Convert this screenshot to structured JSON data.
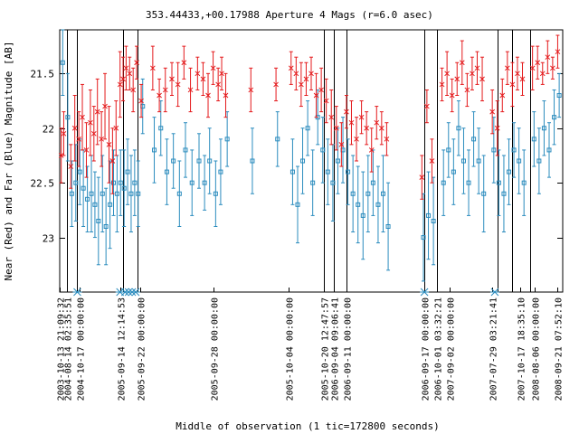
{
  "chart_data": {
    "type": "scatter",
    "title": "353.44433,+00.17988   Aperture 4 Mags (r=6.0 asec)",
    "xlabel": "Middle of observation (1 tic=172800 seconds)",
    "ylabel": "Near (Red) and Far (Blue) Magnitude [AB]",
    "y_inverted": true,
    "xlim": [
      0,
      100
    ],
    "ylim": [
      21.1,
      23.5
    ],
    "yticks": [
      21.5,
      22,
      22.5,
      23
    ],
    "ytick_labels": [
      "21.5",
      "22",
      "22.5",
      "23"
    ],
    "x_tick_labels": [
      {
        "x": 0.0,
        "label": "2003-10-13 21:09:32"
      },
      {
        "x": 1.5,
        "label": "2004-08-14 02:35:51"
      },
      {
        "x": 4.0,
        "label": "2004-10-17 00:00:00"
      },
      {
        "x": 12.0,
        "label": "2005-09-14 12:14:53"
      },
      {
        "x": 16.0,
        "label": "2005-09-22 00:00:00"
      },
      {
        "x": 30.5,
        "label": "2005-09-28 00:00:00"
      },
      {
        "x": 45.5,
        "label": "2005-10-04 00:00:00"
      },
      {
        "x": 52.5,
        "label": "2005-10-20 12:47:57"
      },
      {
        "x": 54.5,
        "label": "2006-09-04 09:06:41"
      },
      {
        "x": 57.0,
        "label": "2006-09-11 00:00:00"
      },
      {
        "x": 72.5,
        "label": "2006-09-17 00:00:00"
      },
      {
        "x": 75.0,
        "label": "2006-10-01 03:32:21"
      },
      {
        "x": 77.5,
        "label": "2007-09-02 00:00:00"
      },
      {
        "x": 86.0,
        "label": "2007-07-29 03:21:41"
      },
      {
        "x": 91.5,
        "label": "2007-10-17 18:35:10"
      },
      {
        "x": 94.5,
        "label": "2008-08-06 00:00:00"
      },
      {
        "x": 99.0,
        "label": "2008-09-21 07:52:10"
      }
    ],
    "season_dividers": [
      1.5,
      3.5,
      12.5,
      15.5,
      52.5,
      54.5,
      57.0,
      72.5,
      75.0,
      87.0,
      90.0,
      93.5
    ],
    "flagged_points_x": [
      3.5,
      12.0,
      13.0,
      13.7,
      14.4,
      15.1,
      72.5,
      86.5
    ],
    "series": [
      {
        "name": "Near (Red)",
        "color": "#e41a1c",
        "marker": "x",
        "x": [
          0.3,
          0.8,
          2.2,
          3.0,
          3.8,
          4.5,
          5.3,
          6.1,
          6.8,
          7.5,
          8.3,
          9.0,
          9.8,
          10.5,
          11.2,
          12.0,
          12.6,
          13.2,
          13.9,
          14.6,
          15.3,
          16.2,
          18.5,
          19.8,
          21.0,
          22.3,
          23.5,
          24.7,
          26.0,
          27.4,
          28.5,
          29.5,
          30.5,
          31.5,
          32.2,
          33.0,
          38.0,
          43.0,
          46.0,
          47.0,
          48.0,
          49.0,
          50.0,
          51.0,
          52.0,
          53.0,
          54.0,
          55.0,
          56.0,
          57.0,
          58.0,
          59.0,
          60.0,
          61.0,
          62.0,
          63.0,
          64.0,
          65.0,
          72.0,
          73.0,
          74.0,
          76.0,
          77.0,
          78.0,
          79.0,
          80.0,
          81.0,
          82.0,
          83.0,
          84.0,
          86.0,
          87.0,
          88.0,
          89.0,
          90.0,
          91.0,
          92.0,
          94.0,
          95.0,
          96.0,
          97.0,
          98.0,
          99.0
        ],
        "y": [
          22.25,
          22.05,
          22.35,
          22.0,
          22.1,
          21.9,
          22.2,
          21.95,
          22.05,
          21.85,
          22.1,
          21.8,
          22.15,
          22.3,
          22.0,
          21.6,
          21.55,
          21.45,
          21.5,
          21.65,
          21.4,
          21.75,
          21.45,
          21.7,
          21.65,
          21.55,
          21.6,
          21.4,
          21.65,
          21.5,
          21.55,
          21.7,
          21.45,
          21.6,
          21.5,
          21.7,
          21.65,
          21.6,
          21.45,
          21.5,
          21.6,
          21.55,
          21.5,
          21.7,
          21.65,
          21.75,
          21.9,
          22.0,
          22.15,
          21.85,
          21.95,
          22.1,
          21.9,
          22.0,
          22.2,
          21.95,
          22.0,
          22.1,
          22.45,
          21.8,
          22.3,
          21.6,
          21.5,
          21.7,
          21.55,
          21.4,
          21.65,
          21.5,
          21.45,
          21.55,
          21.85,
          22.0,
          21.7,
          21.45,
          21.6,
          21.5,
          21.55,
          21.45,
          21.4,
          21.5,
          21.35,
          21.45,
          21.3
        ],
        "yerr": [
          0.25,
          0.2,
          0.2,
          0.3,
          0.25,
          0.3,
          0.25,
          0.3,
          0.25,
          0.3,
          0.25,
          0.3,
          0.35,
          0.3,
          0.25,
          0.3,
          0.2,
          0.2,
          0.15,
          0.2,
          0.15,
          0.15,
          0.2,
          0.15,
          0.2,
          0.15,
          0.2,
          0.15,
          0.2,
          0.15,
          0.15,
          0.2,
          0.15,
          0.15,
          0.15,
          0.2,
          0.2,
          0.15,
          0.15,
          0.15,
          0.2,
          0.15,
          0.15,
          0.2,
          0.2,
          0.2,
          0.25,
          0.2,
          0.2,
          0.15,
          0.2,
          0.2,
          0.15,
          0.15,
          0.2,
          0.15,
          0.15,
          0.15,
          0.2,
          0.15,
          0.2,
          0.15,
          0.2,
          0.15,
          0.15,
          0.2,
          0.15,
          0.15,
          0.15,
          0.2,
          0.2,
          0.25,
          0.15,
          0.15,
          0.2,
          0.15,
          0.15,
          0.2,
          0.15,
          0.1,
          0.15,
          0.1,
          0.15
        ]
      },
      {
        "name": "Far (Blue)",
        "color": "#2b8cbe",
        "marker": "square",
        "x": [
          0.6,
          1.6,
          2.4,
          3.2,
          4.0,
          4.7,
          5.5,
          6.3,
          7.0,
          7.7,
          8.5,
          9.2,
          10.0,
          10.7,
          11.4,
          12.1,
          12.8,
          13.5,
          14.2,
          14.9,
          15.6,
          16.5,
          18.8,
          20.1,
          21.3,
          22.6,
          23.8,
          25.0,
          26.3,
          27.7,
          28.8,
          29.8,
          31.0,
          32.0,
          33.3,
          38.3,
          43.3,
          46.3,
          47.3,
          48.3,
          49.3,
          50.3,
          51.3,
          52.3,
          53.3,
          54.3,
          55.3,
          56.3,
          57.3,
          58.3,
          59.3,
          60.3,
          61.3,
          62.3,
          63.3,
          64.3,
          65.3,
          72.3,
          73.3,
          74.3,
          76.3,
          77.3,
          78.3,
          79.3,
          80.3,
          81.3,
          82.3,
          83.3,
          84.3,
          86.3,
          87.3,
          88.3,
          89.3,
          90.3,
          91.3,
          92.3,
          94.3,
          95.3,
          96.3,
          97.3,
          98.3,
          99.3
        ],
        "y": [
          21.4,
          21.9,
          22.6,
          22.5,
          22.4,
          22.55,
          22.65,
          22.6,
          22.7,
          22.85,
          22.6,
          22.9,
          22.7,
          22.5,
          22.6,
          22.5,
          22.55,
          22.4,
          22.6,
          22.5,
          22.6,
          21.8,
          22.2,
          22.0,
          22.4,
          22.3,
          22.6,
          22.2,
          22.5,
          22.3,
          22.5,
          22.3,
          22.6,
          22.4,
          22.1,
          22.3,
          22.1,
          22.4,
          22.7,
          22.3,
          22.0,
          22.5,
          21.9,
          22.2,
          22.4,
          22.5,
          22.3,
          22.2,
          22.4,
          22.6,
          22.7,
          22.8,
          22.6,
          22.5,
          22.7,
          22.6,
          22.9,
          23.0,
          22.8,
          22.85,
          22.5,
          22.2,
          22.4,
          22.0,
          22.3,
          22.5,
          22.1,
          22.3,
          22.6,
          22.2,
          22.5,
          22.6,
          22.4,
          22.2,
          22.3,
          22.5,
          22.1,
          22.3,
          22.0,
          22.2,
          21.9,
          21.7
        ],
        "yerr": [
          0.3,
          0.4,
          0.3,
          0.35,
          0.3,
          0.35,
          0.3,
          0.35,
          0.3,
          0.4,
          0.35,
          0.35,
          0.4,
          0.3,
          0.35,
          0.3,
          0.35,
          0.3,
          0.35,
          0.3,
          0.3,
          0.25,
          0.3,
          0.25,
          0.3,
          0.25,
          0.3,
          0.25,
          0.3,
          0.25,
          0.25,
          0.3,
          0.3,
          0.3,
          0.25,
          0.3,
          0.25,
          0.3,
          0.35,
          0.3,
          0.25,
          0.3,
          0.25,
          0.3,
          0.3,
          0.35,
          0.3,
          0.3,
          0.3,
          0.35,
          0.35,
          0.4,
          0.35,
          0.3,
          0.35,
          0.35,
          0.4,
          0.4,
          0.4,
          0.4,
          0.3,
          0.25,
          0.3,
          0.25,
          0.3,
          0.3,
          0.25,
          0.3,
          0.35,
          0.3,
          0.3,
          0.35,
          0.3,
          0.25,
          0.3,
          0.3,
          0.25,
          0.3,
          0.25,
          0.25,
          0.25,
          0.2
        ]
      }
    ]
  }
}
